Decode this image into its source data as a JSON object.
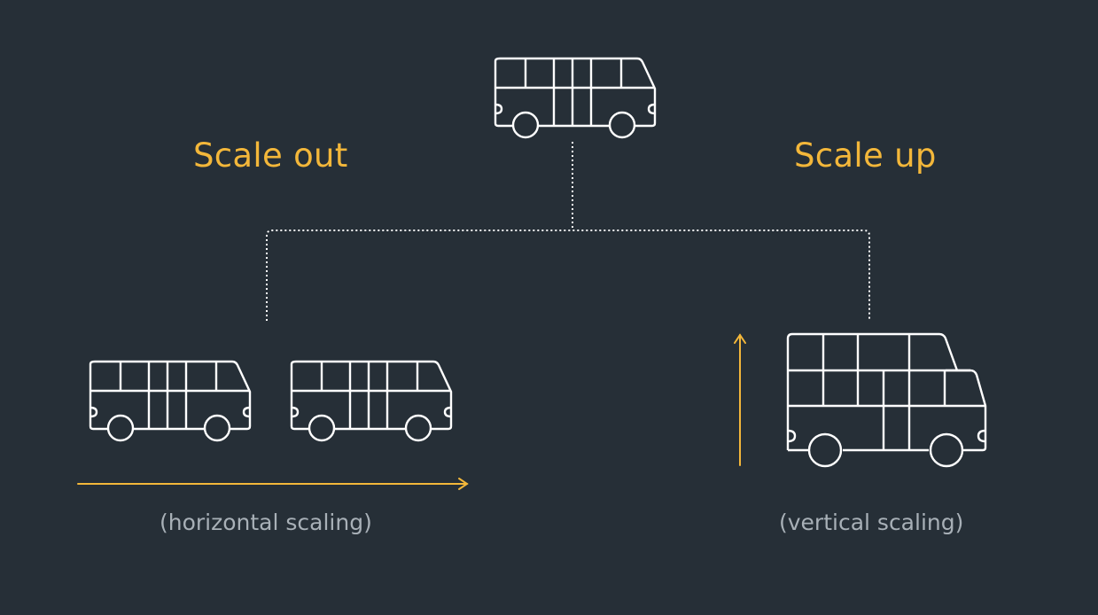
{
  "headings": {
    "scale_out": "Scale out",
    "scale_up": "Scale up"
  },
  "captions": {
    "horizontal": "(horizontal scaling)",
    "vertical": "(vertical scaling)"
  },
  "colors": {
    "background": "#262f37",
    "accent": "#f3b73a",
    "outline": "#ffffff",
    "caption": "#a8b0b7"
  },
  "icons": [
    "bus-icon"
  ]
}
